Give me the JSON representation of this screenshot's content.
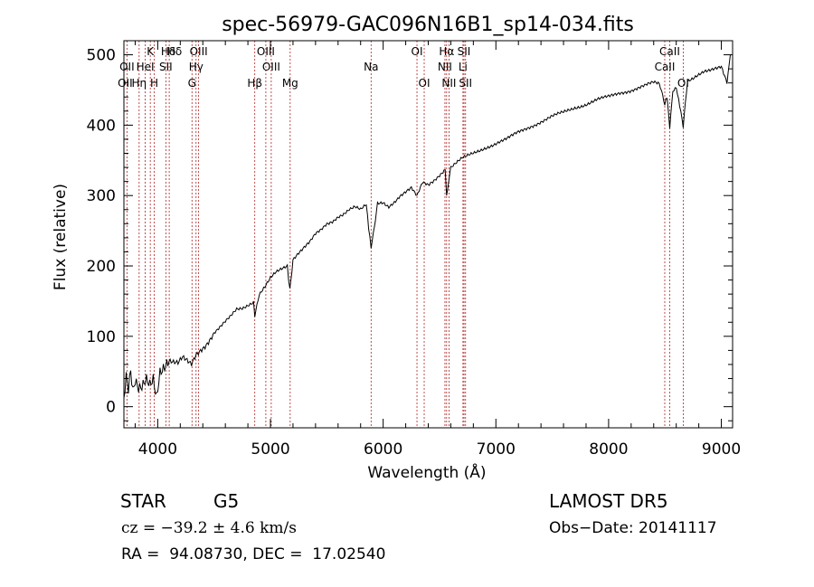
{
  "header": {
    "title": "spec-56979-GAC096N16B1_sp14-034.fits"
  },
  "chart_data": {
    "type": "line",
    "title": "spec-56979-GAC096N16B1_sp14-034.fits",
    "xlabel": "Wavelength (Å)",
    "ylabel": "Flux (relative)",
    "xlim": [
      3700,
      9100
    ],
    "ylim": [
      -30,
      520
    ],
    "xticks": [
      4000,
      5000,
      6000,
      7000,
      8000,
      9000
    ],
    "yticks": [
      0,
      100,
      200,
      300,
      400,
      500
    ],
    "grid": false,
    "series": [
      {
        "x": [
          3700,
          3720,
          3740,
          3760,
          3780,
          3800,
          3830,
          3860,
          3900,
          3930,
          3960,
          3990,
          4020,
          4060,
          4100,
          4140,
          4180,
          4220,
          4260,
          4300,
          4340,
          4380,
          4420,
          4460,
          4500,
          4550,
          4600,
          4650,
          4700,
          4750,
          4800,
          4850,
          4861,
          4900,
          4950,
          5000,
          5050,
          5100,
          5150,
          5172,
          5200,
          5250,
          5300,
          5350,
          5400,
          5450,
          5500,
          5550,
          5600,
          5650,
          5700,
          5750,
          5800,
          5850,
          5893,
          5950,
          6000,
          6050,
          6100,
          6150,
          6200,
          6250,
          6300,
          6350,
          6400,
          6450,
          6500,
          6550,
          6563,
          6600,
          6650,
          6700,
          6750,
          6800,
          6900,
          7000,
          7100,
          7200,
          7300,
          7400,
          7500,
          7600,
          7700,
          7800,
          7900,
          8000,
          8100,
          8200,
          8300,
          8400,
          8450,
          8498,
          8520,
          8542,
          8570,
          8600,
          8662,
          8700,
          8750,
          8800,
          8850,
          8900,
          8950,
          9000,
          9050,
          9080
        ],
        "y": [
          10,
          40,
          20,
          45,
          15,
          30,
          20,
          25,
          40,
          35,
          45,
          20,
          55,
          60,
          65,
          62,
          60,
          68,
          64,
          60,
          75,
          82,
          88,
          96,
          105,
          112,
          120,
          128,
          138,
          140,
          145,
          150,
          128,
          160,
          170,
          182,
          190,
          195,
          200,
          165,
          210,
          220,
          228,
          235,
          245,
          250,
          258,
          262,
          270,
          275,
          282,
          285,
          280,
          286,
          225,
          288,
          290,
          285,
          292,
          300,
          305,
          310,
          298,
          318,
          315,
          322,
          330,
          338,
          300,
          340,
          346,
          352,
          356,
          360,
          368,
          374,
          380,
          390,
          398,
          405,
          412,
          418,
          425,
          430,
          436,
          440,
          446,
          450,
          455,
          460,
          458,
          430,
          440,
          395,
          450,
          455,
          398,
          462,
          465,
          470,
          475,
          478,
          482,
          485,
          462,
          500
        ]
      }
    ],
    "line_markers": [
      {
        "name": "Hδ",
        "wavelength": 4102,
        "row": 0,
        "dx": -1
      },
      {
        "name": "K",
        "wavelength": 3934,
        "row": 0,
        "dx": 0
      },
      {
        "name": "Hδ",
        "wavelength": 4102,
        "row": 0,
        "dx": 6
      },
      {
        "name": "OIII",
        "wavelength": 4363,
        "row": 0,
        "dx": 0
      },
      {
        "name": "OIII",
        "wavelength": 4959,
        "row": 0,
        "dx": 0
      },
      {
        "name": "OI",
        "wavelength": 6300,
        "row": 0,
        "dx": 0
      },
      {
        "name": "Hα",
        "wavelength": 6563,
        "row": 0,
        "dx": 0
      },
      {
        "name": "SII",
        "wavelength": 6717,
        "row": 0,
        "dx": 0
      },
      {
        "name": "CaII",
        "wavelength": 8542,
        "row": 0,
        "dx": 0
      },
      {
        "name": "OII",
        "wavelength": 3727,
        "row": 1,
        "dx": 0
      },
      {
        "name": "HeI",
        "wavelength": 3889,
        "row": 1,
        "dx": 0
      },
      {
        "name": "SII",
        "wavelength": 4072,
        "row": 1,
        "dx": 0
      },
      {
        "name": "Hγ",
        "wavelength": 4340,
        "row": 1,
        "dx": 0
      },
      {
        "name": "OIII",
        "wavelength": 5007,
        "row": 1,
        "dx": 0
      },
      {
        "name": "Na",
        "wavelength": 5893,
        "row": 1,
        "dx": 0
      },
      {
        "name": "NII",
        "wavelength": 6548,
        "row": 1,
        "dx": 0
      },
      {
        "name": "Li",
        "wavelength": 6708,
        "row": 1,
        "dx": 0
      },
      {
        "name": "CaII",
        "wavelength": 8498,
        "row": 1,
        "dx": 0
      },
      {
        "name": "OII",
        "wavelength": 3727,
        "row": 2,
        "dx": -2
      },
      {
        "name": "Hη",
        "wavelength": 3835,
        "row": 2,
        "dx": 0
      },
      {
        "name": "H",
        "wavelength": 3969,
        "row": 2,
        "dx": 0
      },
      {
        "name": "G",
        "wavelength": 4304,
        "row": 2,
        "dx": 0
      },
      {
        "name": "Hβ",
        "wavelength": 4861,
        "row": 2,
        "dx": 0
      },
      {
        "name": "Mg",
        "wavelength": 5175,
        "row": 2,
        "dx": 0
      },
      {
        "name": "OI",
        "wavelength": 6364,
        "row": 2,
        "dx": 0
      },
      {
        "name": "NII",
        "wavelength": 6584,
        "row": 2,
        "dx": 0
      },
      {
        "name": "SII",
        "wavelength": 6731,
        "row": 2,
        "dx": 0
      },
      {
        "name": "OI",
        "wavelength": 8662,
        "row": 2,
        "dx": 0
      }
    ],
    "colors": {
      "line_marker": "#b22222",
      "spectrum": "#000000",
      "axes": "#000000"
    }
  },
  "footer": {
    "object_class": "STAR",
    "subclass": "G5",
    "redshift": "cz = −39.2 ± 4.6 km/s",
    "coords": "RA =  94.08730, DEC =  17.02540",
    "survey": "LAMOST DR5",
    "obs_date": "Obs−Date: 20141117"
  }
}
